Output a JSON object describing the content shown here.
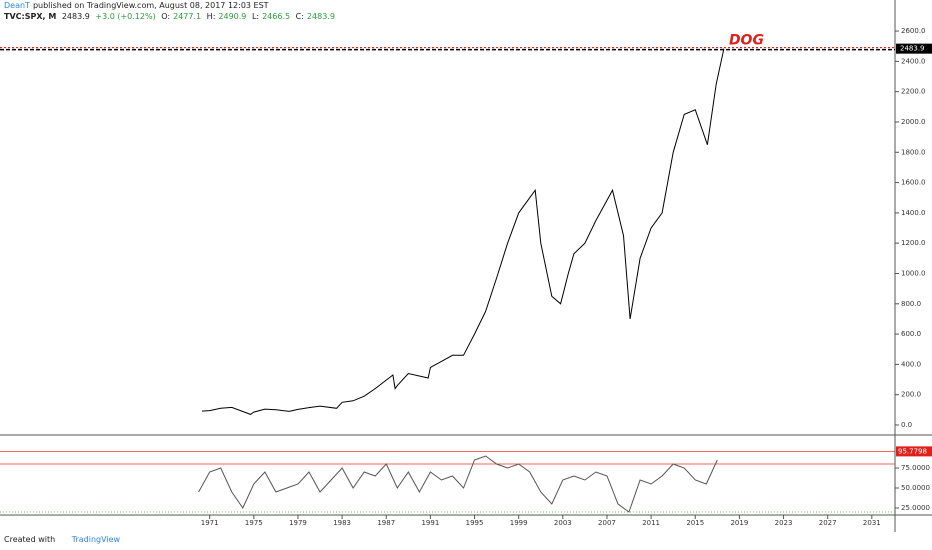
{
  "header": {
    "author": "DeanT",
    "published": "published on TradingView.com, August 08, 2017 12:03 EST",
    "symbol": "TVC:SPX, M",
    "last": "2483.9",
    "change": "+3.0 (+0.12%)",
    "open_label": "O:",
    "open": "2477.1",
    "high_label": "H:",
    "high": "2490.9",
    "low_label": "L:",
    "low": "2466.5",
    "close_label": "C:",
    "close": "2483.9"
  },
  "chart_data": [
    {
      "type": "line",
      "annotation": "DOG",
      "marker": 2483.9,
      "color": "#000000",
      "x": [
        1970.3,
        1971,
        1972,
        1973,
        1974.7,
        1975,
        1976,
        1977,
        1978.2,
        1979,
        1980,
        1981,
        1982.5,
        1983,
        1984,
        1985,
        1986,
        1987.6,
        1987.8,
        1988,
        1989,
        1990.8,
        1991,
        1992,
        1993,
        1994,
        1995,
        1996,
        1997,
        1998,
        1999,
        2000.5,
        2001,
        2002,
        2002.8,
        2003.5,
        2004,
        2005,
        2006,
        2007.5,
        2008.5,
        2009.1,
        2010,
        2011,
        2012,
        2013,
        2014,
        2015,
        2016.1,
        2016.9,
        2017.6
      ],
      "values": [
        92,
        95,
        110,
        116,
        70,
        85,
        105,
        100,
        90,
        103,
        115,
        125,
        110,
        150,
        160,
        190,
        240,
        330,
        240,
        260,
        340,
        310,
        380,
        420,
        460,
        460,
        600,
        750,
        970,
        1200,
        1400,
        1550,
        1200,
        850,
        800,
        1000,
        1130,
        1200,
        1350,
        1550,
        1250,
        700,
        1100,
        1300,
        1400,
        1800,
        2050,
        2080,
        1850,
        2250,
        2483.9
      ],
      "xlim": [
        1952,
        2033.1
      ],
      "ylim": [
        -66,
        2805
      ],
      "xticks": [
        1971,
        1975,
        1979,
        1983,
        1987,
        1991,
        1995,
        1999,
        2003,
        2007,
        2011,
        2015,
        2019,
        2023,
        2027,
        2031
      ],
      "yticks": [
        {
          "value": 0,
          "label": "0.0"
        },
        {
          "value": 200,
          "label": "200.0"
        },
        {
          "value": 400,
          "label": "400.0"
        },
        {
          "value": 600,
          "label": "600.0"
        },
        {
          "value": 800,
          "label": "800.0"
        },
        {
          "value": 1000,
          "label": "1000.0"
        },
        {
          "value": 1200,
          "label": "1200.0"
        },
        {
          "value": 1400,
          "label": "1400.0"
        },
        {
          "value": 1600,
          "label": "1600.0"
        },
        {
          "value": 1800,
          "label": "1800.0"
        },
        {
          "value": 2000,
          "label": "2000.0"
        },
        {
          "value": 2200,
          "label": "2200.0"
        },
        {
          "value": 2400,
          "label": "2400.0"
        },
        {
          "value": 2600,
          "label": "2600.0"
        }
      ]
    },
    {
      "type": "line",
      "color": "#555555",
      "marker": 95.7798,
      "levels": [
        80,
        20
      ],
      "x": [
        1970,
        1971,
        1972,
        1973,
        1974,
        1975,
        1976,
        1977,
        1978,
        1979,
        1980,
        1981,
        1982,
        1983,
        1984,
        1985,
        1986,
        1987,
        1988,
        1989,
        1990,
        1991,
        1992,
        1993,
        1994,
        1995,
        1996,
        1997,
        1998,
        1999,
        2000,
        2001,
        2002,
        2003,
        2004,
        2005,
        2006,
        2007,
        2008,
        2009,
        2010,
        2011,
        2012,
        2013,
        2014,
        2015,
        2016,
        2017
      ],
      "values": [
        45,
        70,
        75,
        45,
        25,
        55,
        70,
        45,
        50,
        55,
        70,
        45,
        60,
        75,
        50,
        70,
        65,
        80,
        50,
        70,
        45,
        70,
        60,
        65,
        50,
        85,
        90,
        80,
        75,
        80,
        70,
        45,
        30,
        60,
        65,
        60,
        70,
        65,
        30,
        20,
        60,
        55,
        65,
        80,
        75,
        60,
        55,
        85
      ],
      "ylim": [
        16.25,
        113.75
      ],
      "yticks": [
        {
          "value": 25,
          "label": "25.0000"
        },
        {
          "value": 50,
          "label": "50.0000"
        },
        {
          "value": 75,
          "label": "75.0000"
        }
      ]
    }
  ],
  "footer": {
    "created": "Created with",
    "brand": "TradingView"
  }
}
